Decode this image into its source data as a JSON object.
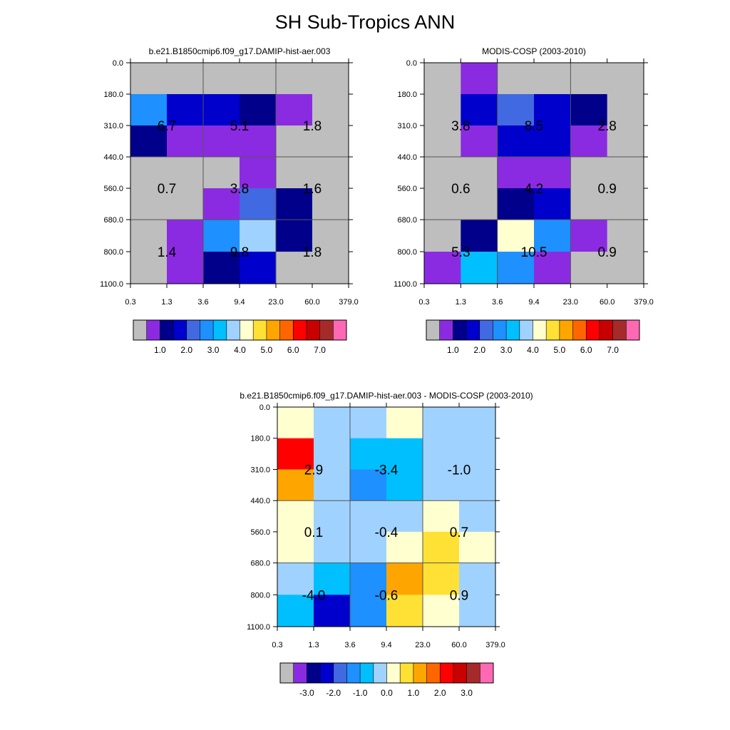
{
  "title": "SH Sub-Tropics ANN",
  "chart_data": [
    {
      "type": "heatmap",
      "title": "b.e21.B1850cmip6.f09_g17.DAMIP-hist-aer.003",
      "x_ticks": [
        "0.3",
        "1.3",
        "3.6",
        "9.4",
        "23.0",
        "60.0",
        "379.0"
      ],
      "y_ticks": [
        "0.0",
        "180.0",
        "310.0",
        "440.0",
        "560.0",
        "680.0",
        "800.0",
        "1100.0"
      ],
      "cells": [
        [
          "gray",
          "gray",
          "gray",
          "gray",
          "gray",
          "gray"
        ],
        [
          "c5",
          "c3",
          "c3",
          "c2",
          "c1",
          "gray"
        ],
        [
          "c2",
          "c1",
          "c1",
          "c1",
          "gray",
          "gray"
        ],
        [
          "gray",
          "gray",
          "gray",
          "c1",
          "gray",
          "gray"
        ],
        [
          "gray",
          "gray",
          "c1",
          "c4",
          "c2",
          "gray"
        ],
        [
          "gray",
          "c1",
          "c5",
          "c7",
          "c2",
          "gray"
        ],
        [
          "gray",
          "c1",
          "c2",
          "c3",
          "gray",
          "gray"
        ]
      ],
      "labels": [
        [
          "6.7",
          "5.1",
          "1.8"
        ],
        [
          "0.7",
          "3.8",
          "1.6"
        ],
        [
          "1.4",
          "9.8",
          "1.8"
        ]
      ],
      "colorbar": {
        "colors": [
          "#bebebe",
          "#8a2be2",
          "#00008b",
          "#0000cd",
          "#4169e1",
          "#1e90ff",
          "#00bfff",
          "#a0d2ff",
          "#ffffd0",
          "#ffe135",
          "#ffa500",
          "#ff6600",
          "#ff0000",
          "#c80000",
          "#a52a2a",
          "#ff69b4"
        ],
        "labels": [
          "1.0",
          "2.0",
          "3.0",
          "4.0",
          "5.0",
          "6.0",
          "7.0"
        ]
      }
    },
    {
      "type": "heatmap",
      "title": "MODIS-COSP (2003-2010)",
      "x_ticks": [
        "0.3",
        "1.3",
        "3.6",
        "9.4",
        "23.0",
        "60.0",
        "379.0"
      ],
      "y_ticks": [
        "0.0",
        "180.0",
        "310.0",
        "440.0",
        "560.0",
        "680.0",
        "800.0",
        "1100.0"
      ],
      "cells": [
        [
          "gray",
          "c1",
          "gray",
          "gray",
          "gray",
          "gray"
        ],
        [
          "gray",
          "c3",
          "c4",
          "c3",
          "c2",
          "gray"
        ],
        [
          "gray",
          "c1",
          "c3",
          "c3",
          "c1",
          "gray"
        ],
        [
          "gray",
          "gray",
          "c1",
          "c1",
          "gray",
          "gray"
        ],
        [
          "gray",
          "gray",
          "c2",
          "c3",
          "gray",
          "gray"
        ],
        [
          "gray",
          "c2",
          "c8",
          "c5",
          "c1",
          "gray"
        ],
        [
          "c1",
          "c6",
          "c5",
          "c1",
          "gray",
          "gray"
        ]
      ],
      "labels": [
        [
          "3.8",
          "8.5",
          "2.8"
        ],
        [
          "0.6",
          "4.2",
          "0.9"
        ],
        [
          "5.3",
          "10.5",
          "0.9"
        ]
      ],
      "colorbar": {
        "colors": [
          "#bebebe",
          "#8a2be2",
          "#00008b",
          "#0000cd",
          "#4169e1",
          "#1e90ff",
          "#00bfff",
          "#a0d2ff",
          "#ffffd0",
          "#ffe135",
          "#ffa500",
          "#ff6600",
          "#ff0000",
          "#c80000",
          "#a52a2a",
          "#ff69b4"
        ],
        "labels": [
          "1.0",
          "2.0",
          "3.0",
          "4.0",
          "5.0",
          "6.0",
          "7.0"
        ]
      }
    },
    {
      "type": "heatmap",
      "title": "b.e21.B1850cmip6.f09_g17.DAMIP-hist-aer.003 - MODIS-COSP (2003-2010)",
      "x_ticks": [
        "0.3",
        "1.3",
        "3.6",
        "9.4",
        "23.0",
        "60.0",
        "379.0"
      ],
      "y_ticks": [
        "0.0",
        "180.0",
        "310.0",
        "440.0",
        "560.0",
        "680.0",
        "800.0",
        "1100.0"
      ],
      "cells": [
        [
          "c8",
          "c7",
          "c7",
          "c8",
          "c7",
          "c7"
        ],
        [
          "c12",
          "c7",
          "c6",
          "c6",
          "c7",
          "c7"
        ],
        [
          "c10",
          "c7",
          "c5",
          "c6",
          "c7",
          "c7"
        ],
        [
          "c8",
          "c7",
          "c7",
          "c7",
          "c8",
          "c7"
        ],
        [
          "c8",
          "c7",
          "c7",
          "c8",
          "c9",
          "c8"
        ],
        [
          "c7",
          "c6",
          "c5",
          "c10",
          "c9",
          "c7"
        ],
        [
          "c6",
          "c3",
          "c5",
          "c9",
          "c8",
          "c7"
        ]
      ],
      "labels": [
        [
          "2.9",
          "-3.4",
          "-1.0"
        ],
        [
          "0.1",
          "-0.4",
          "0.7"
        ],
        [
          "-4.0",
          "-0.6",
          "0.9"
        ]
      ],
      "colorbar": {
        "colors": [
          "#bebebe",
          "#8a2be2",
          "#00008b",
          "#0000cd",
          "#4169e1",
          "#1e90ff",
          "#00bfff",
          "#a0d2ff",
          "#ffffd0",
          "#ffe135",
          "#ffa500",
          "#ff6600",
          "#ff0000",
          "#c80000",
          "#a52a2a",
          "#ff69b4"
        ],
        "labels": [
          "-3.0",
          "-2.0",
          "-1.0",
          "0.0",
          "1.0",
          "2.0",
          "3.0"
        ]
      }
    }
  ]
}
